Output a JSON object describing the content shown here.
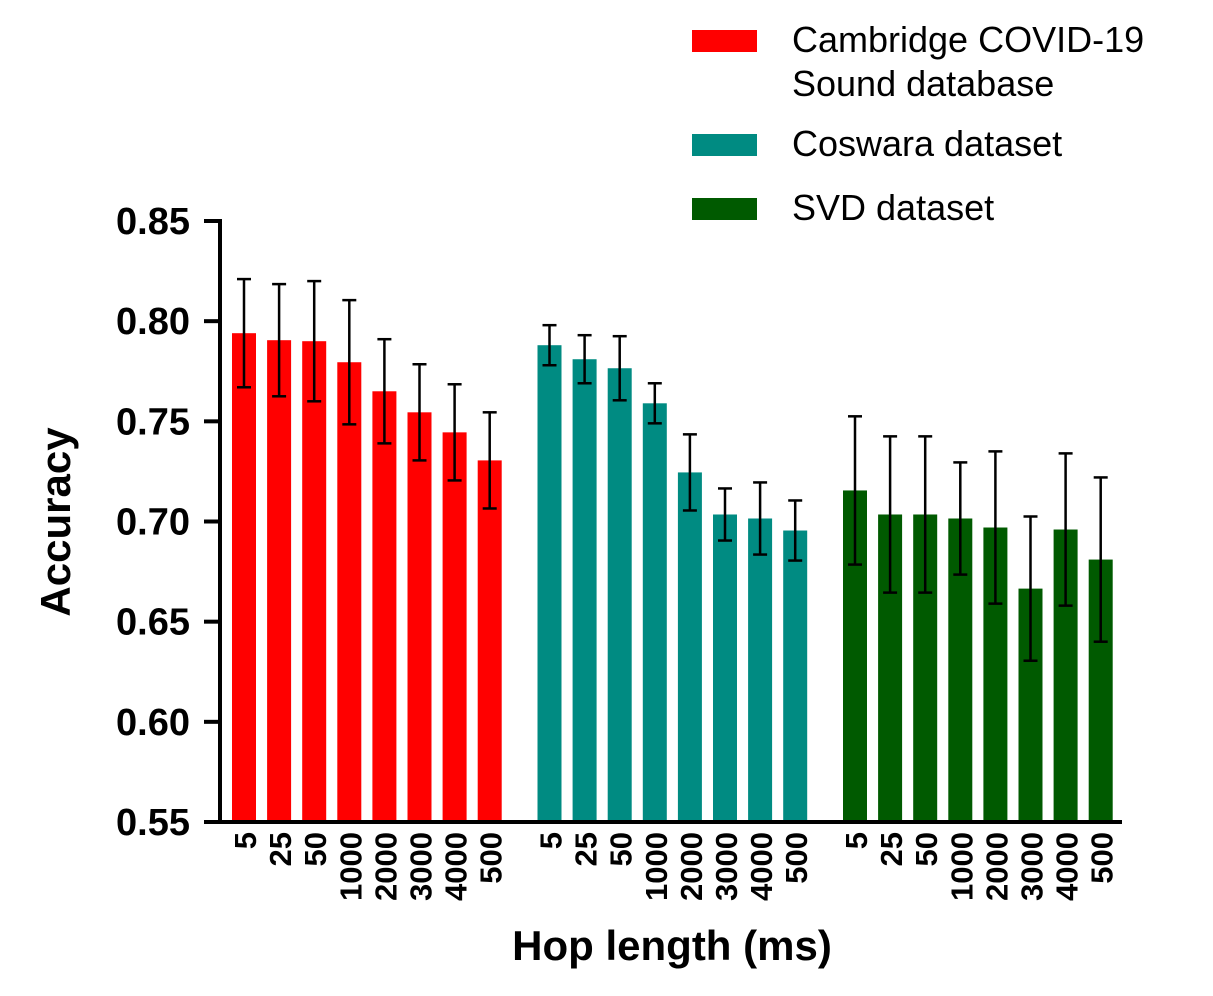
{
  "chart_data": {
    "type": "bar",
    "xlabel": "Hop length (ms)",
    "ylabel": "Accuracy",
    "categories": [
      "5",
      "25",
      "50",
      "1000",
      "2000",
      "3000",
      "4000",
      "500"
    ],
    "series": [
      {
        "name": "Cambridge COVID-19 Sound database",
        "color": "#ff0000",
        "values": [
          0.794,
          0.7905,
          0.79,
          0.7795,
          0.765,
          0.7545,
          0.7445,
          0.7305
        ],
        "errors": [
          0.027,
          0.028,
          0.03,
          0.031,
          0.026,
          0.024,
          0.024,
          0.024
        ]
      },
      {
        "name": "Coswara dataset",
        "color": "#008b82",
        "values": [
          0.788,
          0.781,
          0.7765,
          0.759,
          0.7245,
          0.7035,
          0.7015,
          0.6955
        ],
        "errors": [
          0.01,
          0.012,
          0.016,
          0.01,
          0.019,
          0.013,
          0.018,
          0.015
        ]
      },
      {
        "name": "SVD dataset",
        "color": "#005a00",
        "values": [
          0.7155,
          0.7035,
          0.7035,
          0.7015,
          0.697,
          0.6665,
          0.696,
          0.681
        ],
        "errors": [
          0.037,
          0.039,
          0.039,
          0.028,
          0.038,
          0.036,
          0.038,
          0.041
        ]
      }
    ],
    "ylim": [
      0.55,
      0.85
    ],
    "yticks": [
      {
        "value": 0.55,
        "label": "0.55"
      },
      {
        "value": 0.6,
        "label": "0.60"
      },
      {
        "value": 0.65,
        "label": "0.65"
      },
      {
        "value": 0.7,
        "label": "0.70"
      },
      {
        "value": 0.75,
        "label": "0.75"
      },
      {
        "value": 0.8,
        "label": "0.80"
      },
      {
        "value": 0.85,
        "label": "0.85"
      }
    ],
    "legend": "top-right"
  }
}
